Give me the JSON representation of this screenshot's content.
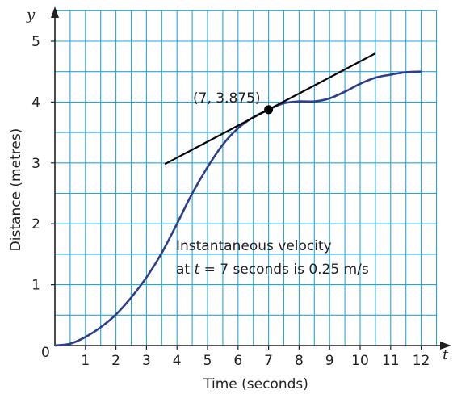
{
  "chart_data": {
    "type": "line",
    "title": "",
    "xlabel": "Time (seconds)",
    "ylabel": "Distance (metres)",
    "x_axis_var": "t",
    "y_axis_var": "y",
    "origin_label": "0",
    "xlim": [
      0,
      13
    ],
    "ylim": [
      0,
      5.5
    ],
    "grid": true,
    "grid_step": 0.5,
    "x_ticks": [
      "1",
      "2",
      "3",
      "4",
      "5",
      "6",
      "7",
      "8",
      "9",
      "10",
      "11",
      "12"
    ],
    "y_ticks": [
      "1",
      "2",
      "3",
      "4",
      "5"
    ],
    "colors": {
      "grid": "#22a7e0",
      "curve": "#2b3f8c",
      "tangent": "#000000",
      "axis": "#231f20"
    },
    "series": [
      {
        "kind": "curve",
        "x": [
          0,
          0.5,
          1,
          1.5,
          2,
          2.5,
          3,
          3.5,
          4,
          4.5,
          5,
          5.5,
          6,
          6.5,
          7,
          7.5,
          8,
          8.5,
          9,
          9.5,
          10,
          10.5,
          11,
          11.5,
          12
        ],
        "y": [
          0,
          0.03,
          0.14,
          0.3,
          0.51,
          0.79,
          1.12,
          1.52,
          2.0,
          2.5,
          2.93,
          3.3,
          3.57,
          3.75,
          3.875,
          3.98,
          4.01,
          4.01,
          4.06,
          4.17,
          4.3,
          4.4,
          4.45,
          4.49,
          4.5
        ]
      },
      {
        "kind": "tangent",
        "x": [
          3.6,
          10.5
        ],
        "y": [
          2.98,
          4.8
        ]
      }
    ],
    "point": {
      "x": 7,
      "y": 3.875,
      "label": "(7, 3.875)"
    },
    "annotation": {
      "line1": "Instantaneous velocity",
      "line2_prefix": "at ",
      "line2_var": "t",
      "line2_eq": " = ",
      "line2_rest": "7 seconds is 0.25 m/s"
    }
  }
}
